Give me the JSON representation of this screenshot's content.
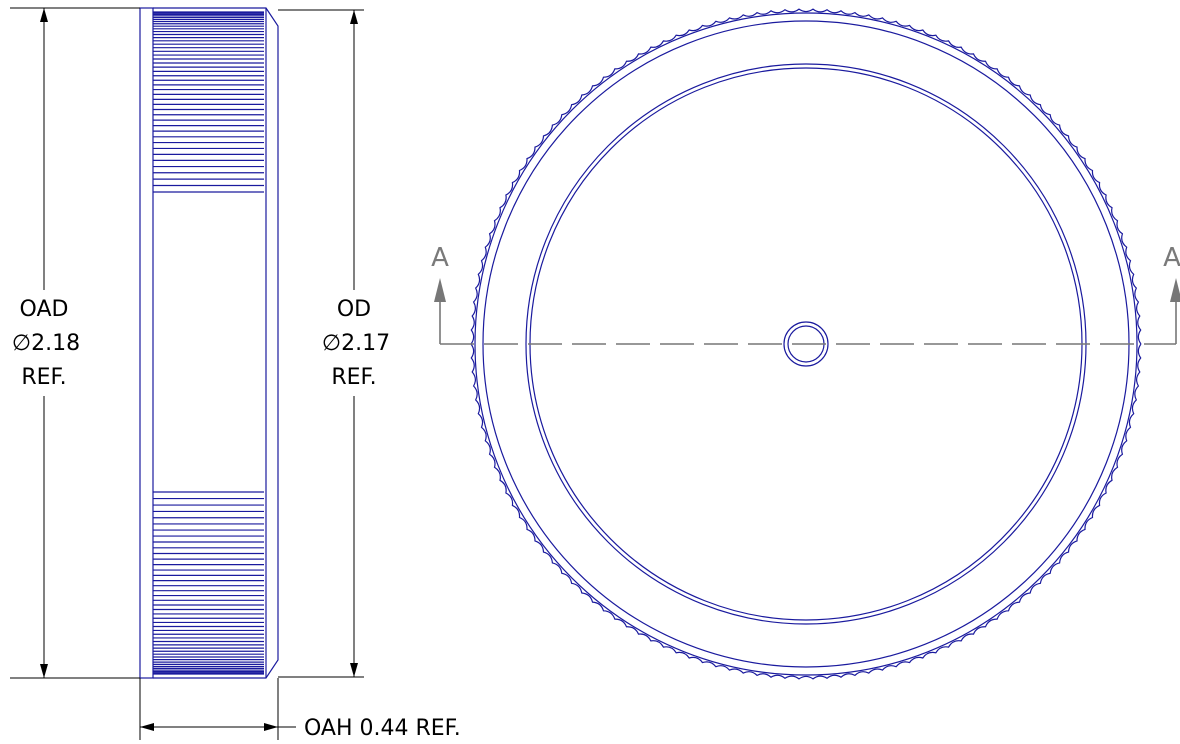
{
  "left_view": {
    "oad_label": "OAD",
    "oad_value": "∅2.18",
    "oad_ref": "REF.",
    "od_label": "OD",
    "od_value": "∅2.17",
    "od_ref": "REF.",
    "oah_label": "OAH 0.44 REF."
  },
  "right_view": {
    "section_left": "A",
    "section_right": "A"
  },
  "colors": {
    "part": "#1a1a9e",
    "dimension": "#000000",
    "section_line": "#777777"
  }
}
